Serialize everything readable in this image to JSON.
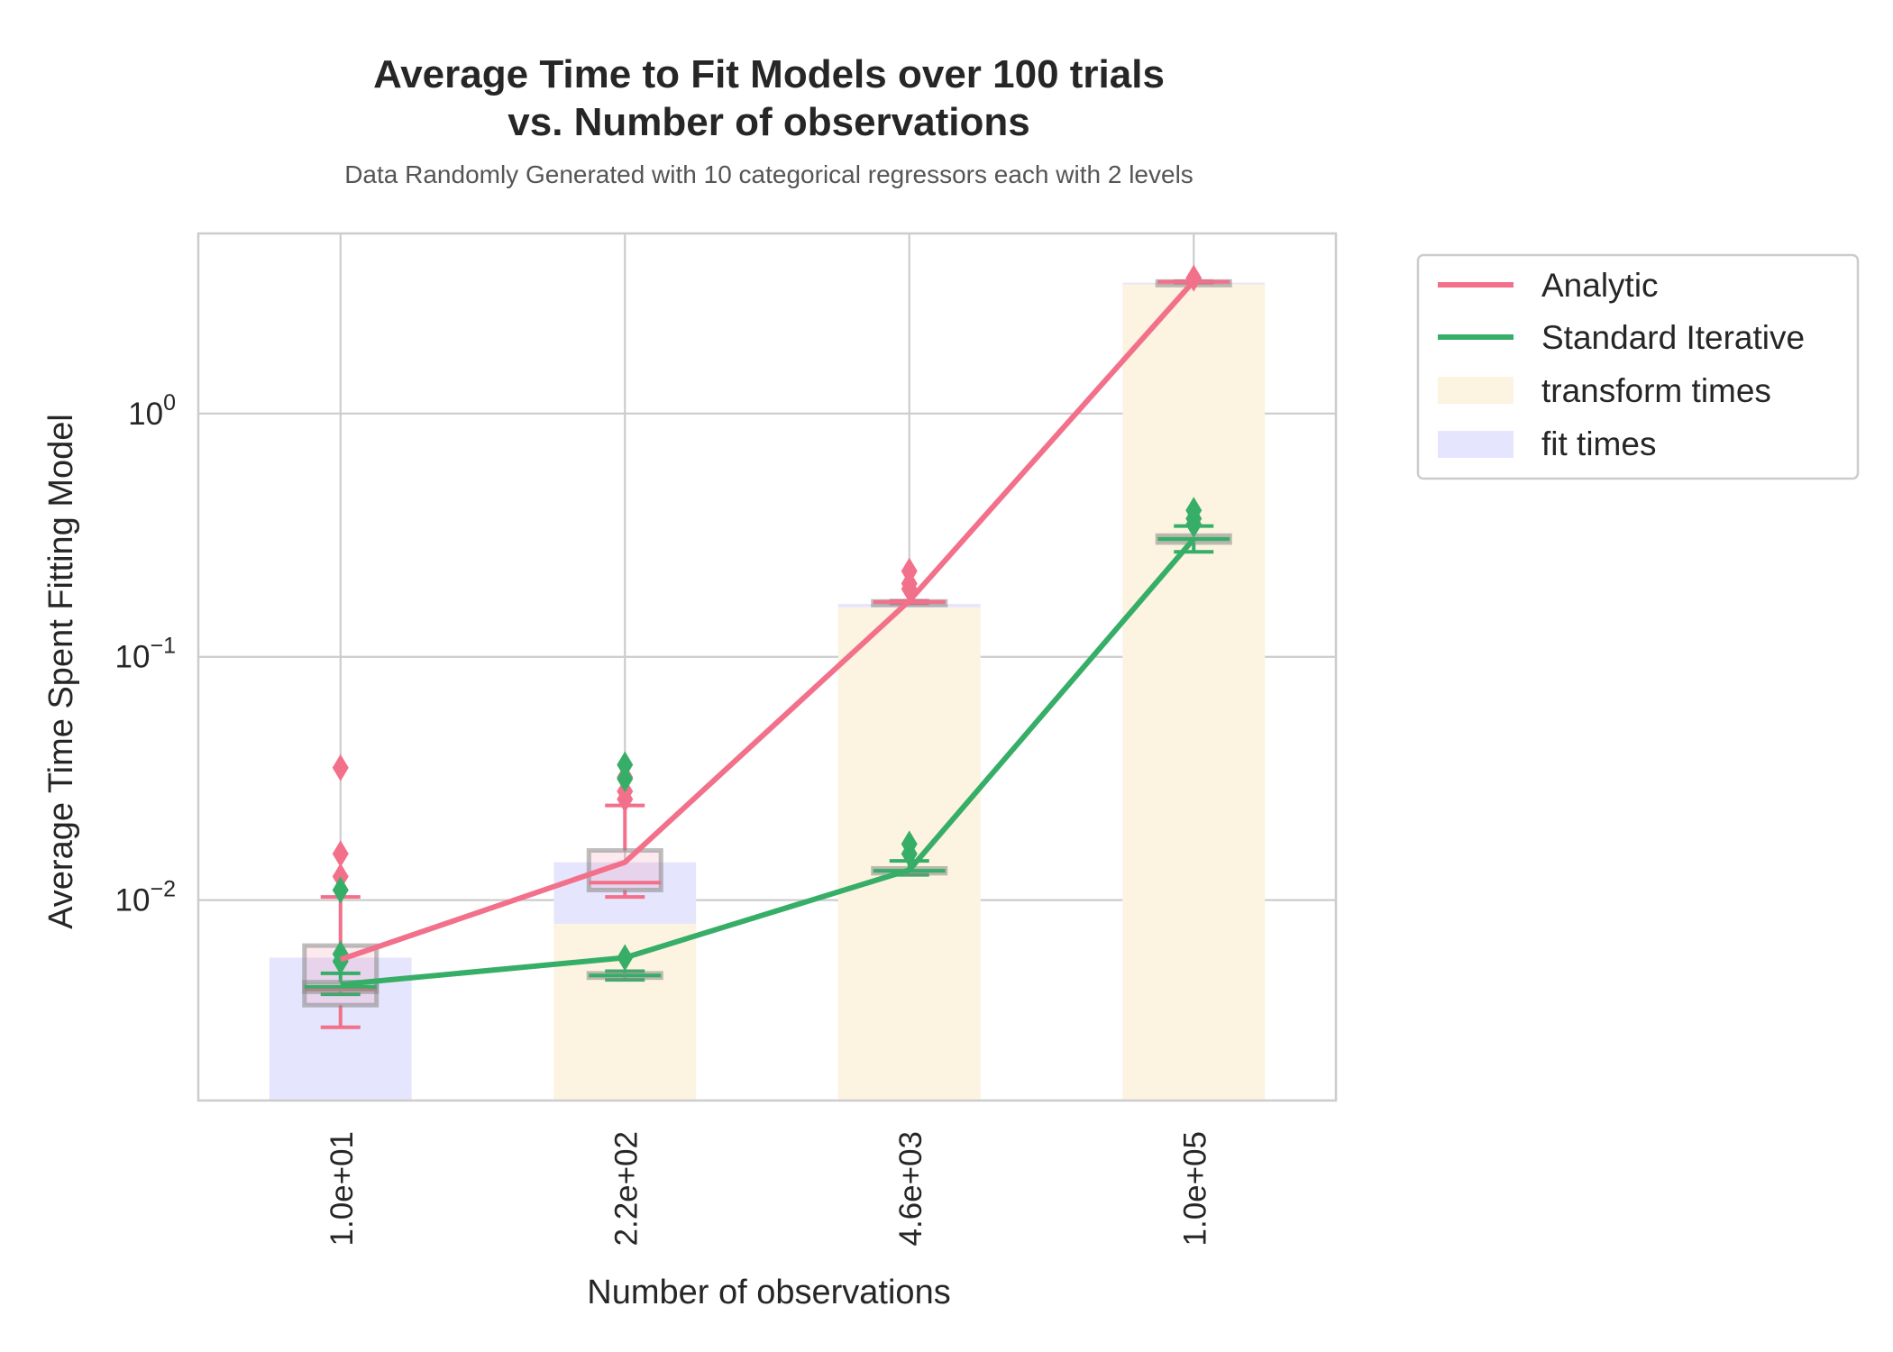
{
  "chart_data": {
    "type": "line",
    "title_line1": "Average Time to Fit Models over 100 trials",
    "title_line2": "vs. Number of observations",
    "subtitle": "Data Randomly Generated with 10 categorical regressors each with 2 levels",
    "xlabel": "Number of observations",
    "ylabel": "Average Time Spent Fitting Model",
    "yscale": "log",
    "ylim": [
      0.0015,
      5.5
    ],
    "ytick_base": "10",
    "yticks": [
      {
        "value": 0.01,
        "exp": "−2"
      },
      {
        "value": 0.1,
        "exp": "−1"
      },
      {
        "value": 1,
        "exp": "0"
      }
    ],
    "categories": [
      "1.0e+01",
      "2.2e+02",
      "4.6e+03",
      "1.0e+05"
    ],
    "grid": true,
    "legend_position": "outside top-right",
    "legend": {
      "analytic": "Analytic",
      "iterative": "Standard Iterative",
      "transform": "transform times",
      "fit": "fit times"
    },
    "colors": {
      "analytic": "#f2708a",
      "iterative": "#37ae68",
      "transform": "#fdf3e1",
      "fit": "#e5e5fd",
      "grid": "#cccccc",
      "box": "#888888"
    },
    "series": [
      {
        "name": "Analytic",
        "values": [
          0.0057,
          0.0143,
          0.17,
          3.5
        ]
      },
      {
        "name": "Standard Iterative",
        "values": [
          0.0045,
          0.0058,
          0.0133,
          0.305
        ]
      }
    ],
    "stacked_bars": {
      "total": [
        0.0058,
        0.0143,
        0.165,
        3.45
      ],
      "fit": [
        0.0058,
        0.0143,
        0.165,
        3.45
      ],
      "transform": [
        0.0,
        0.008,
        0.16,
        3.4
      ]
    },
    "boxplots": {
      "analytic": [
        {
          "whislo": 0.003,
          "q1": 0.0037,
          "med": 0.0043,
          "q3": 0.0065,
          "whishi": 0.0103,
          "fliers": [
            0.0125,
            0.0155,
            0.035
          ]
        },
        {
          "whislo": 0.0103,
          "q1": 0.011,
          "med": 0.0118,
          "q3": 0.016,
          "whishi": 0.0245,
          "fliers": [
            0.026,
            0.028,
            0.032
          ]
        },
        {
          "whislo": 0.166,
          "q1": 0.167,
          "med": 0.168,
          "q3": 0.169,
          "whishi": 0.17,
          "fliers": [
            0.19,
            0.2,
            0.225
          ]
        },
        {
          "whislo": 3.45,
          "q1": 3.47,
          "med": 3.48,
          "q3": 3.49,
          "whishi": 3.5,
          "fliers": [
            3.6
          ]
        }
      ],
      "iterative": [
        {
          "whislo": 0.0041,
          "q1": 0.0042,
          "med": 0.0044,
          "q3": 0.0046,
          "whishi": 0.005,
          "fliers": [
            0.0056,
            0.006,
            0.011
          ]
        },
        {
          "whislo": 0.0047,
          "q1": 0.0048,
          "med": 0.0049,
          "q3": 0.005,
          "whishi": 0.0051,
          "fliers": [
            0.0058,
            0.0315,
            0.036
          ]
        },
        {
          "whislo": 0.0127,
          "q1": 0.0129,
          "med": 0.0132,
          "q3": 0.0135,
          "whishi": 0.0145,
          "fliers": [
            0.0155,
            0.017
          ]
        },
        {
          "whislo": 0.27,
          "q1": 0.295,
          "med": 0.305,
          "q3": 0.315,
          "whishi": 0.345,
          "fliers": [
            0.35,
            0.37,
            0.4
          ]
        }
      ]
    }
  }
}
